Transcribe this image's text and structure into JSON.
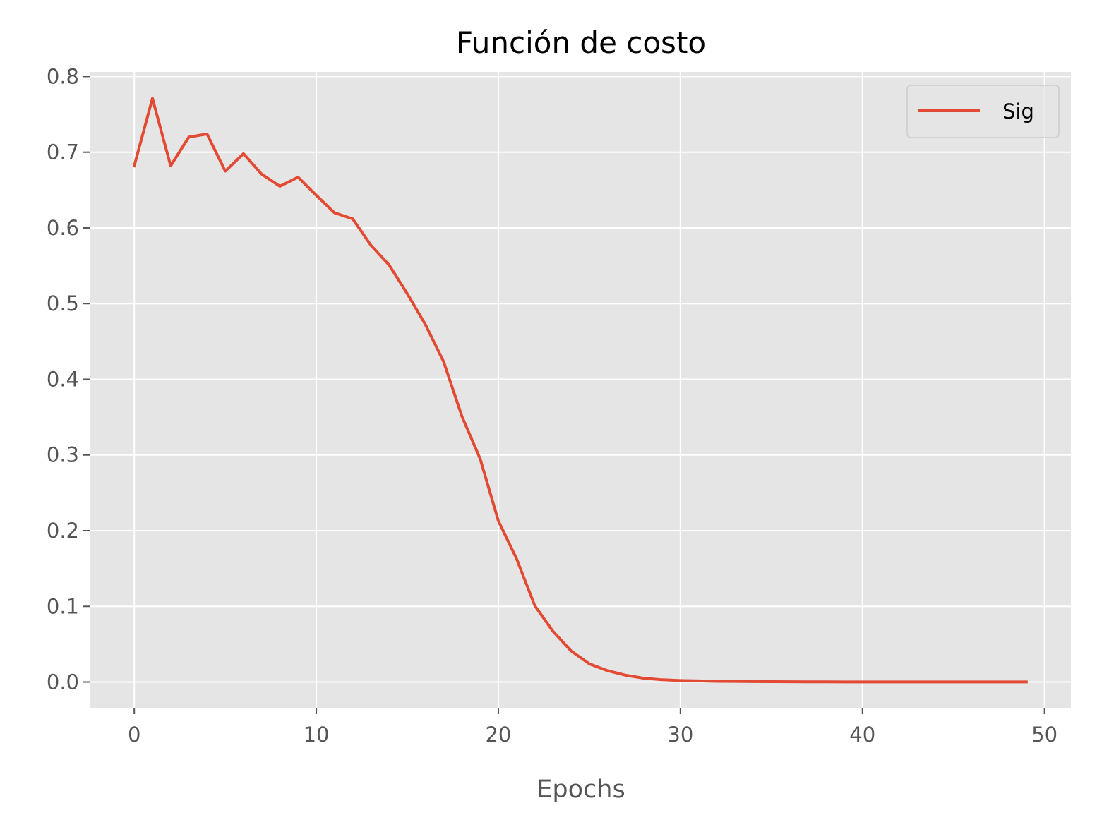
{
  "chart_data": {
    "type": "line",
    "title": "Función de costo",
    "xlabel": "Epochs",
    "ylabel": "",
    "xlim": [
      -2.45,
      51.45
    ],
    "ylim": [
      -0.034,
      0.806
    ],
    "xticks": [
      0,
      10,
      20,
      30,
      40,
      50
    ],
    "yticks": [
      0.0,
      0.1,
      0.2,
      0.3,
      0.4,
      0.5,
      0.6,
      0.7,
      0.8
    ],
    "xtick_labels": [
      "0",
      "10",
      "20",
      "30",
      "40",
      "50"
    ],
    "ytick_labels": [
      "0.0",
      "0.1",
      "0.2",
      "0.3",
      "0.4",
      "0.5",
      "0.6",
      "0.7",
      "0.8"
    ],
    "grid": true,
    "legend_position": "top-right",
    "series": [
      {
        "name": "Sig",
        "color": "#E24A33",
        "x": [
          0,
          1,
          2,
          3,
          4,
          5,
          6,
          7,
          8,
          9,
          10,
          11,
          12,
          13,
          14,
          15,
          16,
          17,
          18,
          19,
          20,
          21,
          22,
          23,
          24,
          25,
          26,
          27,
          28,
          29,
          30,
          31,
          32,
          33,
          34,
          35,
          36,
          37,
          38,
          39,
          40,
          41,
          42,
          43,
          44,
          45,
          46,
          47,
          48,
          49
        ],
        "y": [
          0.682,
          0.771,
          0.682,
          0.72,
          0.724,
          0.675,
          0.698,
          0.671,
          0.655,
          0.667,
          0.643,
          0.62,
          0.612,
          0.577,
          0.551,
          0.513,
          0.472,
          0.423,
          0.351,
          0.295,
          0.213,
          0.163,
          0.101,
          0.067,
          0.041,
          0.024,
          0.015,
          0.009,
          0.005,
          0.003,
          0.002,
          0.0015,
          0.001,
          0.0008,
          0.0006,
          0.0005,
          0.0004,
          0.0003,
          0.0003,
          0.0002,
          0.0002,
          0.0002,
          0.0001,
          0.0001,
          0.0001,
          0.0001,
          0.0001,
          0.0001,
          0.0001,
          0.0001
        ]
      }
    ]
  },
  "colors": {
    "plot_background": "#E5E5E5",
    "grid": "#FFFFFF",
    "tick": "#555555",
    "line": "#E24A33"
  }
}
